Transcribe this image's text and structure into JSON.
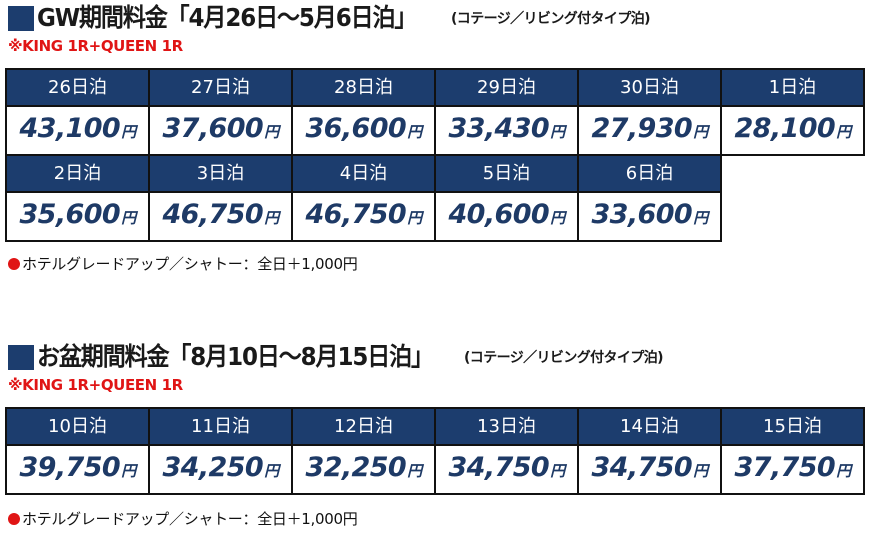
{
  "colors": {
    "navy": "#1c3d6e",
    "price_text": "#1e3a66",
    "red": "#e01515"
  },
  "gw": {
    "title": "GW期間料金「4月26日〜5月6日泊」",
    "subtitle": "(コテージ／リビング付タイプ泊)",
    "room_note": "※KING 1R+QUEEN 1R",
    "yen": "円",
    "row1": [
      {
        "night": "26日泊",
        "price": "43,100"
      },
      {
        "night": "27日泊",
        "price": "37,600"
      },
      {
        "night": "28日泊",
        "price": "36,600"
      },
      {
        "night": "29日泊",
        "price": "33,430"
      },
      {
        "night": "30日泊",
        "price": "27,930"
      },
      {
        "night": "1日泊",
        "price": "28,100"
      }
    ],
    "row2": [
      {
        "night": "2日泊",
        "price": "35,600"
      },
      {
        "night": "3日泊",
        "price": "46,750"
      },
      {
        "night": "4日泊",
        "price": "46,750"
      },
      {
        "night": "5日泊",
        "price": "40,600"
      },
      {
        "night": "6日泊",
        "price": "33,600"
      }
    ],
    "footnote": "ホテルグレードアップ／シャトー：全日＋1,000円"
  },
  "obon": {
    "title": "お盆期間料金「8月10日〜8月15日泊」",
    "subtitle": "(コテージ／リビング付タイプ泊)",
    "room_note": "※KING 1R+QUEEN 1R",
    "yen": "円",
    "row1": [
      {
        "night": "10日泊",
        "price": "39,750"
      },
      {
        "night": "11日泊",
        "price": "34,250"
      },
      {
        "night": "12日泊",
        "price": "32,250"
      },
      {
        "night": "13日泊",
        "price": "34,750"
      },
      {
        "night": "14日泊",
        "price": "34,750"
      },
      {
        "night": "15日泊",
        "price": "37,750"
      }
    ],
    "footnote": "ホテルグレードアップ／シャトー：全日＋1,000円"
  }
}
